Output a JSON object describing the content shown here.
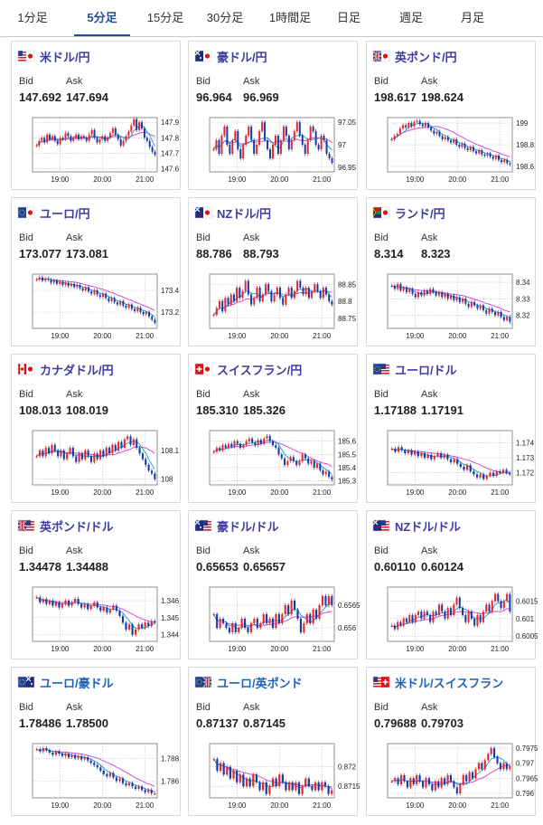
{
  "tabs": [
    "1分足",
    "5分足",
    "15分足",
    "30分足",
    "1時間足",
    "日足",
    "週足",
    "月足"
  ],
  "active_tab": 1,
  "labels": {
    "bid": "Bid",
    "ask": "Ask"
  },
  "x_ticks": [
    "19:00",
    "20:00",
    "21:00"
  ],
  "colors": {
    "up": "#e8262d",
    "down": "#1a3aa8",
    "ma1": "#0aa3c8",
    "ma2": "#d23ad8",
    "tab_active": "#1d4f9e"
  },
  "cards": [
    {
      "pair": "米ドル/円",
      "flag": "us-jp-flag",
      "bid": "147.692",
      "ask": "147.694",
      "yticks": [
        "147.9",
        "147.8",
        "147.7",
        "147.6"
      ],
      "ylim": [
        147.58,
        147.93
      ],
      "series": [
        147.75,
        147.78,
        147.8,
        147.77,
        147.82,
        147.79,
        147.81,
        147.78,
        147.76,
        147.8,
        147.79,
        147.83,
        147.81,
        147.78,
        147.8,
        147.82,
        147.79,
        147.81,
        147.8,
        147.78,
        147.82,
        147.85,
        147.8,
        147.77,
        147.79,
        147.81,
        147.78,
        147.8,
        147.83,
        147.86,
        147.82,
        147.79,
        147.75,
        147.78,
        147.81,
        147.84,
        147.88,
        147.92,
        147.85,
        147.9,
        147.86,
        147.8,
        147.78,
        147.74,
        147.71,
        147.69
      ]
    },
    {
      "pair": "豪ドル/円",
      "flag": "au-jp-flag",
      "bid": "96.964",
      "ask": "96.969",
      "yticks": [
        "97.05",
        "97",
        "96.95"
      ],
      "ylim": [
        96.94,
        97.06
      ],
      "series": [
        96.99,
        97.01,
        96.98,
        97.02,
        97.04,
        97.0,
        96.98,
        97.01,
        97.03,
        96.99,
        96.97,
        97.0,
        97.02,
        97.04,
        97.01,
        96.98,
        97.0,
        97.03,
        97.05,
        97.01,
        96.99,
        96.97,
        97.0,
        97.02,
        96.98,
        97.01,
        97.04,
        97.02,
        96.99,
        97.01,
        97.03,
        97.05,
        97.02,
        97.0,
        96.98,
        97.01,
        97.04,
        97.03,
        97.0,
        96.99,
        97.02,
        97.01,
        96.98,
        96.97,
        96.96
      ]
    },
    {
      "pair": "英ポンド/円",
      "flag": "gb-jp-flag",
      "bid": "198.617",
      "ask": "198.624",
      "yticks": [
        "199",
        "198.8",
        "198.6"
      ],
      "ylim": [
        198.55,
        199.05
      ],
      "series": [
        198.85,
        198.88,
        198.9,
        198.95,
        198.98,
        198.96,
        199.0,
        198.97,
        199.01,
        199.02,
        198.99,
        198.97,
        199.0,
        198.96,
        198.93,
        198.9,
        198.92,
        198.88,
        198.85,
        198.87,
        198.84,
        198.82,
        198.85,
        198.8,
        198.78,
        198.81,
        198.77,
        198.75,
        198.78,
        198.74,
        198.72,
        198.75,
        198.71,
        198.7,
        198.72,
        198.69,
        198.67,
        198.7,
        198.66,
        198.64,
        198.66,
        198.63,
        198.62
      ]
    },
    {
      "pair": "ユーロ/円",
      "flag": "eu-jp-flag",
      "bid": "173.077",
      "ask": "173.081",
      "yticks": [
        "173.4",
        "173.2"
      ],
      "ylim": [
        173.05,
        173.55
      ],
      "series": [
        173.5,
        173.52,
        173.49,
        173.51,
        173.5,
        173.47,
        173.49,
        173.46,
        173.48,
        173.45,
        173.47,
        173.44,
        173.46,
        173.43,
        173.45,
        173.42,
        173.4,
        173.43,
        173.39,
        173.37,
        173.4,
        173.36,
        173.34,
        173.37,
        173.33,
        173.3,
        173.33,
        173.29,
        173.27,
        173.3,
        173.26,
        173.24,
        173.27,
        173.23,
        173.21,
        173.24,
        173.2,
        173.18,
        173.2,
        173.16,
        173.13,
        173.1
      ]
    },
    {
      "pair": "NZドル/円",
      "flag": "nz-jp-flag",
      "bid": "88.786",
      "ask": "88.793",
      "yticks": [
        "88.85",
        "88.8",
        "88.75"
      ],
      "ylim": [
        88.72,
        88.88
      ],
      "series": [
        88.76,
        88.78,
        88.8,
        88.77,
        88.81,
        88.79,
        88.82,
        88.8,
        88.84,
        88.81,
        88.83,
        88.86,
        88.82,
        88.79,
        88.81,
        88.84,
        88.8,
        88.82,
        88.85,
        88.83,
        88.8,
        88.82,
        88.84,
        88.81,
        88.79,
        88.82,
        88.84,
        88.81,
        88.83,
        88.86,
        88.84,
        88.82,
        88.84,
        88.81,
        88.83,
        88.85,
        88.83,
        88.81,
        88.84,
        88.82,
        88.8,
        88.79
      ]
    },
    {
      "pair": "ランド/円",
      "flag": "za-jp-flag",
      "bid": "8.314",
      "ask": "8.323",
      "yticks": [
        "8.34",
        "8.33",
        "8.32"
      ],
      "ylim": [
        8.312,
        8.345
      ],
      "series": [
        8.338,
        8.336,
        8.339,
        8.335,
        8.337,
        8.334,
        8.336,
        8.333,
        8.331,
        8.334,
        8.332,
        8.335,
        8.333,
        8.336,
        8.334,
        8.332,
        8.334,
        8.331,
        8.333,
        8.33,
        8.332,
        8.329,
        8.331,
        8.328,
        8.33,
        8.327,
        8.325,
        8.328,
        8.326,
        8.324,
        8.326,
        8.323,
        8.321,
        8.324,
        8.322,
        8.32,
        8.322,
        8.319,
        8.317,
        8.319,
        8.316
      ]
    },
    {
      "pair": "カナダドル/円",
      "flag": "ca-jp-flag",
      "bid": "108.013",
      "ask": "108.019",
      "yticks": [
        "108.1",
        "108"
      ],
      "ylim": [
        107.98,
        108.17
      ],
      "series": [
        108.08,
        108.1,
        108.08,
        108.11,
        108.09,
        108.12,
        108.1,
        108.08,
        108.1,
        108.07,
        108.09,
        108.11,
        108.08,
        108.06,
        108.09,
        108.07,
        108.1,
        108.08,
        108.06,
        108.09,
        108.07,
        108.1,
        108.08,
        108.11,
        108.09,
        108.12,
        108.1,
        108.13,
        108.11,
        108.14,
        108.15,
        108.12,
        108.14,
        108.11,
        108.09,
        108.07,
        108.05,
        108.03,
        108.02,
        108.0
      ]
    },
    {
      "pair": "スイスフラン/円",
      "flag": "ch-jp-flag",
      "bid": "185.310",
      "ask": "185.326",
      "yticks": [
        "185.6",
        "185.5",
        "185.4",
        "185.3"
      ],
      "ylim": [
        185.27,
        185.68
      ],
      "series": [
        185.52,
        185.55,
        185.53,
        185.57,
        185.55,
        185.58,
        185.56,
        185.6,
        185.58,
        185.55,
        185.57,
        185.6,
        185.62,
        185.59,
        185.57,
        185.61,
        185.58,
        185.62,
        185.64,
        185.6,
        185.57,
        185.55,
        185.5,
        185.47,
        185.42,
        185.45,
        185.48,
        185.45,
        185.42,
        185.45,
        185.5,
        185.47,
        185.43,
        185.45,
        185.4,
        185.43,
        185.38,
        185.35,
        185.37,
        185.33,
        185.31
      ]
    },
    {
      "pair": "ユーロ/ドル",
      "flag": "eu-us-flag",
      "bid": "1.17188",
      "ask": "1.17191",
      "yticks": [
        "1.174",
        "1.173",
        "1.172"
      ],
      "ylim": [
        1.1712,
        1.1748
      ],
      "series": [
        1.1736,
        1.1734,
        1.1737,
        1.1735,
        1.1733,
        1.1735,
        1.1732,
        1.1734,
        1.1731,
        1.1733,
        1.173,
        1.1732,
        1.1729,
        1.1731,
        1.1733,
        1.173,
        1.1732,
        1.1729,
        1.1727,
        1.1729,
        1.1726,
        1.1724,
        1.1722,
        1.1725,
        1.1721,
        1.1719,
        1.1717,
        1.1719,
        1.1716,
        1.1718,
        1.172,
        1.1718,
        1.1721,
        1.172,
        1.1722,
        1.172,
        1.1719
      ]
    },
    {
      "pair": "英ポンド/ドル",
      "flag": "gb-us-flag",
      "bid": "1.34478",
      "ask": "1.34488",
      "yticks": [
        "1.346",
        "1.345",
        "1.344"
      ],
      "ylim": [
        1.3436,
        1.3468
      ],
      "series": [
        1.3462,
        1.3459,
        1.3461,
        1.3458,
        1.346,
        1.3457,
        1.3459,
        1.3456,
        1.3458,
        1.346,
        1.3457,
        1.3459,
        1.3461,
        1.3458,
        1.3456,
        1.3458,
        1.3455,
        1.3457,
        1.3459,
        1.3456,
        1.3454,
        1.3456,
        1.3453,
        1.3455,
        1.3457,
        1.3454,
        1.3451,
        1.3447,
        1.3443,
        1.3446,
        1.344,
        1.3443,
        1.3446,
        1.3444,
        1.3447,
        1.3445,
        1.3448,
        1.3447
      ]
    },
    {
      "pair": "豪ドル/ドル",
      "flag": "au-us-flag",
      "bid": "0.65653",
      "ask": "0.65657",
      "yticks": [
        "0.6565",
        "0.656"
      ],
      "ylim": [
        0.6557,
        0.6569
      ],
      "series": [
        0.6563,
        0.656,
        0.6562,
        0.6561,
        0.656,
        0.6559,
        0.6561,
        0.6559,
        0.656,
        0.6562,
        0.656,
        0.6559,
        0.6561,
        0.6562,
        0.656,
        0.6561,
        0.6563,
        0.6561,
        0.6562,
        0.656,
        0.6563,
        0.6561,
        0.6563,
        0.6565,
        0.6563,
        0.6566,
        0.6564,
        0.6562,
        0.6559,
        0.6561,
        0.6563,
        0.6561,
        0.6564,
        0.6562,
        0.6565,
        0.6567,
        0.6565,
        0.6567,
        0.6565
      ]
    },
    {
      "pair": "NZドル/ドル",
      "flag": "nz-us-flag",
      "bid": "0.60110",
      "ask": "0.60124",
      "yticks": [
        "0.6015",
        "0.601",
        "0.6005"
      ],
      "ylim": [
        0.60035,
        0.6019
      ],
      "series": [
        0.6008,
        0.6007,
        0.6009,
        0.6008,
        0.601,
        0.6009,
        0.6011,
        0.6009,
        0.6011,
        0.6012,
        0.601,
        0.6012,
        0.6011,
        0.6009,
        0.6012,
        0.6011,
        0.6014,
        0.6012,
        0.601,
        0.6013,
        0.6011,
        0.6014,
        0.6016,
        0.6013,
        0.6011,
        0.6009,
        0.6012,
        0.601,
        0.6008,
        0.6011,
        0.6009,
        0.6012,
        0.6014,
        0.6012,
        0.6015,
        0.6017,
        0.6015,
        0.6013,
        0.6015,
        0.6017,
        0.6012
      ]
    },
    {
      "pair": "ユーロ/豪ドル",
      "flag": "eu-au-flag",
      "bid": "1.78486",
      "ask": "1.78500",
      "yticks": [
        "1.788",
        "1.786"
      ],
      "ylim": [
        1.7845,
        1.7893
      ],
      "series": [
        1.7888,
        1.7886,
        1.7889,
        1.7887,
        1.7885,
        1.7883,
        1.7886,
        1.7884,
        1.7882,
        1.7884,
        1.7881,
        1.7883,
        1.788,
        1.7882,
        1.7879,
        1.7881,
        1.7878,
        1.7876,
        1.7874,
        1.7872,
        1.7869,
        1.7866,
        1.7864,
        1.7867,
        1.7863,
        1.786,
        1.7862,
        1.7858,
        1.7856,
        1.7858,
        1.7855,
        1.7853,
        1.7855,
        1.7852,
        1.785,
        1.7852,
        1.7849,
        1.7849
      ]
    },
    {
      "pair": "ユーロ/英ポンド",
      "flag": "eu-gb-flag",
      "bid": "0.87137",
      "ask": "0.87145",
      "yticks": [
        "0.872",
        "0.8715"
      ],
      "ylim": [
        0.8712,
        0.8726
      ],
      "series": [
        0.8722,
        0.8719,
        0.8721,
        0.8718,
        0.872,
        0.8717,
        0.8719,
        0.8716,
        0.8718,
        0.8715,
        0.8717,
        0.8715,
        0.8718,
        0.8716,
        0.8714,
        0.8716,
        0.8713,
        0.8715,
        0.8717,
        0.8715,
        0.8718,
        0.8716,
        0.8714,
        0.8716,
        0.8714,
        0.8716,
        0.8713,
        0.8715,
        0.8717,
        0.8715,
        0.8714,
        0.8716,
        0.8714,
        0.8716,
        0.8715,
        0.8713,
        0.8714
      ]
    },
    {
      "pair": "米ドル/スイスフラン",
      "flag": "us-ch-flag",
      "bid": "0.79688",
      "ask": "0.79703",
      "yticks": [
        "0.7975",
        "0.797",
        "0.7965",
        "0.796"
      ],
      "ylim": [
        0.79585,
        0.79765
      ],
      "series": [
        0.7964,
        0.7965,
        0.7963,
        0.7966,
        0.7964,
        0.7962,
        0.7965,
        0.7963,
        0.7966,
        0.7964,
        0.7962,
        0.7965,
        0.7963,
        0.7961,
        0.7964,
        0.7962,
        0.7965,
        0.7963,
        0.7966,
        0.7964,
        0.7962,
        0.796,
        0.7963,
        0.7966,
        0.7964,
        0.7967,
        0.7965,
        0.7968,
        0.797,
        0.7968,
        0.7971,
        0.7973,
        0.7975,
        0.7972,
        0.797,
        0.7968,
        0.797,
        0.7968,
        0.7969
      ]
    }
  ]
}
